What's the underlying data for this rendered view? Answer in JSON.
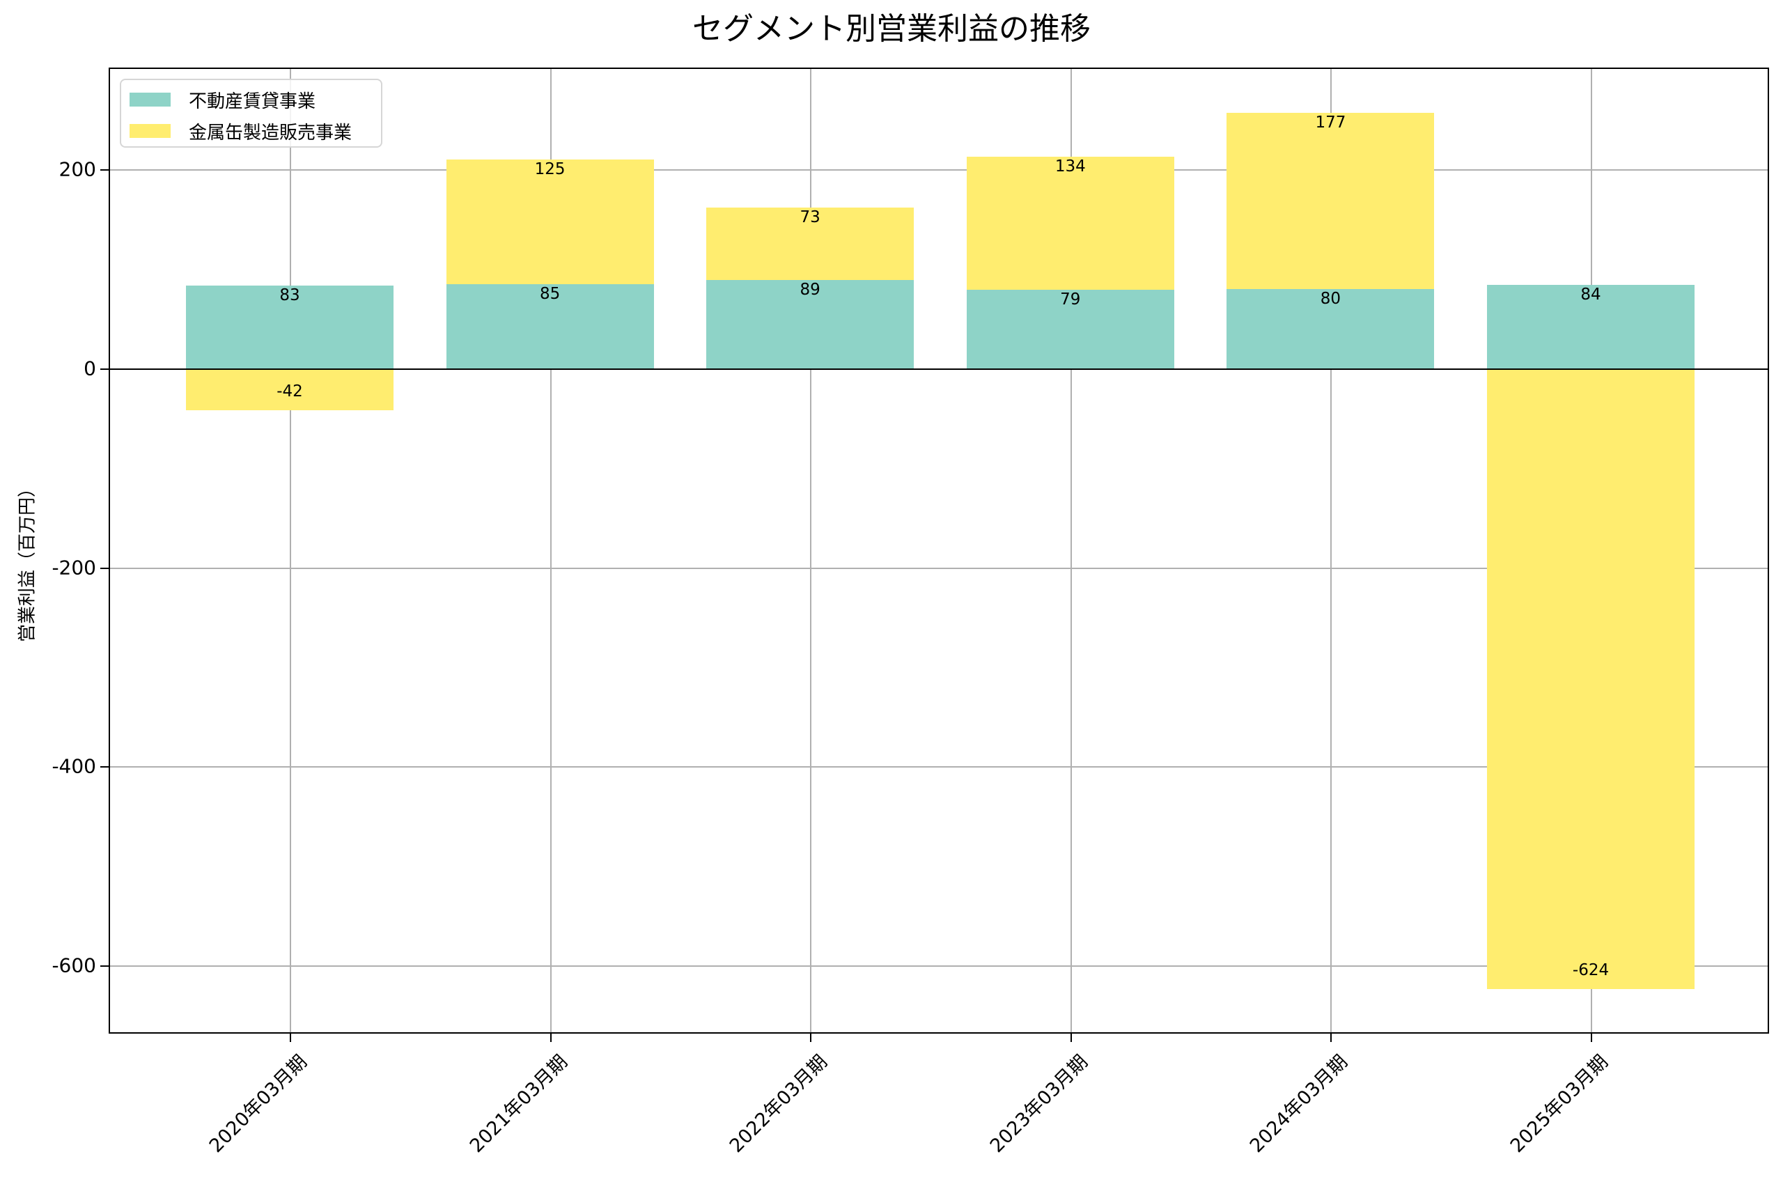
{
  "chart_data": {
    "type": "bar",
    "stacked": true,
    "title": "セグメント別営業利益の推移",
    "xlabel": "",
    "ylabel": "営業利益（百万円）",
    "categories": [
      "2020年03月期",
      "2021年03月期",
      "2022年03月期",
      "2023年03月期",
      "2024年03月期",
      "2025年03月期"
    ],
    "series": [
      {
        "name": "不動産賃貸事業",
        "color": "#8ED3C7",
        "values": [
          83,
          85,
          89,
          79,
          80,
          84
        ]
      },
      {
        "name": "金属缶製造販売事業",
        "color": "#FFED6F",
        "values": [
          -42,
          125,
          73,
          134,
          177,
          -624
        ]
      }
    ],
    "ylim": [
      -670,
      301
    ],
    "yticks": [
      200,
      0,
      -200,
      -400,
      -600
    ],
    "grid": true,
    "legend_position": "upper left",
    "data_labels": true
  },
  "labels": {
    "title": "セグメント別営業利益の推移",
    "ylabel": "営業利益（百万円）"
  }
}
